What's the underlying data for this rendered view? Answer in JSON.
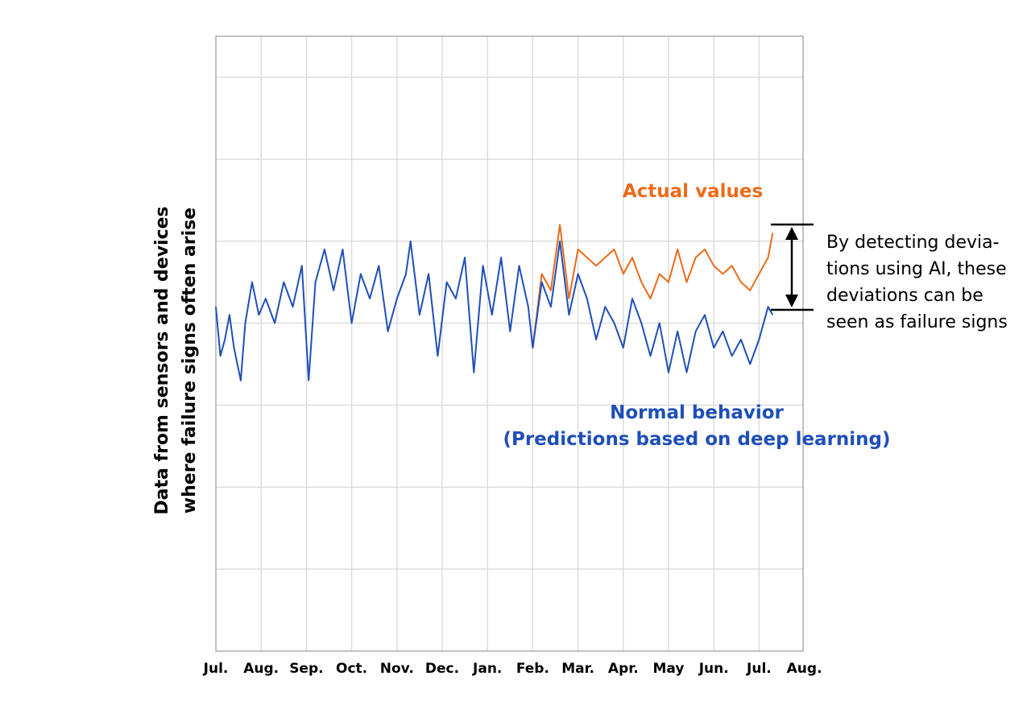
{
  "colors": {
    "actual": "#ED6A1A",
    "normal": "#1F4FB7",
    "grid": "#DDDDDD",
    "axis": "#999999"
  },
  "chart_data": {
    "type": "line",
    "title": "",
    "ylabel_lines": [
      "Data from sensors and devices",
      "where failure signs often arise"
    ],
    "xlabel": "",
    "x_ticks": [
      "Jul.",
      "Aug.",
      "Sep.",
      "Oct.",
      "Nov.",
      "Dec.",
      "Jan.",
      "Feb.",
      "Mar.",
      "Apr.",
      "May",
      "Jun.",
      "Jul.",
      "Aug."
    ],
    "ylim": [
      0,
      7.5
    ],
    "y_gridlines": [
      1,
      2,
      3,
      4,
      5,
      6,
      7
    ],
    "x_unit": "month index from first Jul. tick",
    "grid": true,
    "legend": "none",
    "series": [
      {
        "name": "Actual values",
        "color": "#ED6A1A",
        "divergence_start_month": 7.0
      },
      {
        "name": "Normal behavior (Predictions based on deep learning)",
        "color": "#1F4FB7"
      }
    ],
    "normal_points": [
      [
        0.0,
        4.2
      ],
      [
        0.1,
        3.6
      ],
      [
        0.2,
        3.8
      ],
      [
        0.3,
        4.1
      ],
      [
        0.4,
        3.7
      ],
      [
        0.55,
        3.3
      ],
      [
        0.65,
        4.0
      ],
      [
        0.8,
        4.5
      ],
      [
        0.95,
        4.1
      ],
      [
        1.1,
        4.3
      ],
      [
        1.3,
        4.0
      ],
      [
        1.5,
        4.5
      ],
      [
        1.7,
        4.2
      ],
      [
        1.9,
        4.7
      ],
      [
        2.05,
        3.3
      ],
      [
        2.2,
        4.5
      ],
      [
        2.4,
        4.9
      ],
      [
        2.6,
        4.4
      ],
      [
        2.8,
        4.9
      ],
      [
        3.0,
        4.0
      ],
      [
        3.2,
        4.6
      ],
      [
        3.4,
        4.3
      ],
      [
        3.6,
        4.7
      ],
      [
        3.8,
        3.9
      ],
      [
        4.0,
        4.3
      ],
      [
        4.2,
        4.6
      ],
      [
        4.3,
        5.0
      ],
      [
        4.5,
        4.1
      ],
      [
        4.7,
        4.6
      ],
      [
        4.9,
        3.6
      ],
      [
        5.1,
        4.5
      ],
      [
        5.3,
        4.3
      ],
      [
        5.5,
        4.8
      ],
      [
        5.7,
        3.4
      ],
      [
        5.9,
        4.7
      ],
      [
        6.1,
        4.1
      ],
      [
        6.3,
        4.8
      ],
      [
        6.5,
        3.9
      ],
      [
        6.7,
        4.7
      ],
      [
        6.9,
        4.2
      ],
      [
        7.0,
        3.7
      ],
      [
        7.2,
        4.5
      ],
      [
        7.4,
        4.2
      ],
      [
        7.6,
        5.0
      ],
      [
        7.8,
        4.1
      ],
      [
        8.0,
        4.6
      ],
      [
        8.2,
        4.3
      ],
      [
        8.4,
        3.8
      ],
      [
        8.6,
        4.2
      ],
      [
        8.8,
        4.0
      ],
      [
        9.0,
        3.7
      ],
      [
        9.2,
        4.3
      ],
      [
        9.4,
        4.0
      ],
      [
        9.6,
        3.6
      ],
      [
        9.8,
        4.0
      ],
      [
        10.0,
        3.4
      ],
      [
        10.2,
        3.9
      ],
      [
        10.4,
        3.4
      ],
      [
        10.6,
        3.9
      ],
      [
        10.8,
        4.1
      ],
      [
        11.0,
        3.7
      ],
      [
        11.2,
        3.9
      ],
      [
        11.4,
        3.6
      ],
      [
        11.6,
        3.8
      ],
      [
        11.8,
        3.5
      ],
      [
        12.0,
        3.8
      ],
      [
        12.2,
        4.2
      ],
      [
        12.3,
        4.1
      ]
    ],
    "actual_points": [
      [
        7.0,
        3.7
      ],
      [
        7.2,
        4.6
      ],
      [
        7.4,
        4.4
      ],
      [
        7.6,
        5.2
      ],
      [
        7.8,
        4.3
      ],
      [
        8.0,
        4.9
      ],
      [
        8.2,
        4.8
      ],
      [
        8.4,
        4.7
      ],
      [
        8.6,
        4.8
      ],
      [
        8.8,
        4.9
      ],
      [
        9.0,
        4.6
      ],
      [
        9.2,
        4.8
      ],
      [
        9.4,
        4.5
      ],
      [
        9.6,
        4.3
      ],
      [
        9.8,
        4.6
      ],
      [
        10.0,
        4.5
      ],
      [
        10.2,
        4.9
      ],
      [
        10.4,
        4.5
      ],
      [
        10.6,
        4.8
      ],
      [
        10.8,
        4.9
      ],
      [
        11.0,
        4.7
      ],
      [
        11.2,
        4.6
      ],
      [
        11.4,
        4.7
      ],
      [
        11.6,
        4.5
      ],
      [
        11.8,
        4.4
      ],
      [
        12.0,
        4.6
      ],
      [
        12.2,
        4.8
      ],
      [
        12.3,
        5.1
      ]
    ]
  },
  "annotations": {
    "actual_label": "Actual values",
    "normal_label_lines": [
      "Normal behavior",
      "(Predictions based on deep learning)"
    ],
    "side_note_lines": [
      "By detecting devia-",
      "tions using AI, these",
      "deviations can be",
      "seen as failure signs"
    ]
  }
}
